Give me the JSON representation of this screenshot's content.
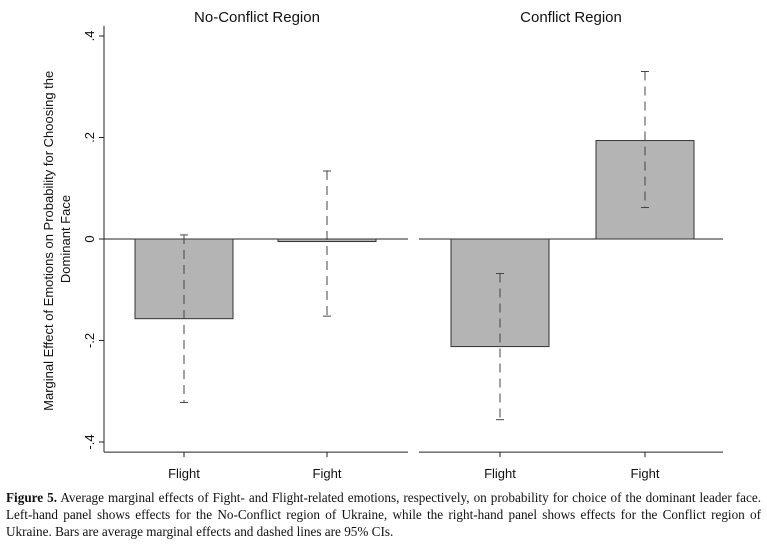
{
  "chart_data": [
    {
      "type": "bar",
      "title": "No-Conflict Region",
      "categories": [
        "Flight",
        "Fight"
      ],
      "values": [
        -0.157,
        -0.005
      ],
      "ci_low": [
        -0.322,
        -0.152
      ],
      "ci_high": [
        0.008,
        0.134
      ],
      "ylabel": "Marginal Effect of Emotions on Probability for Choosing the Dominant Face",
      "ylim": [
        -0.42,
        0.42
      ],
      "yticks": [
        -0.4,
        -0.2,
        0,
        0.2,
        0.4
      ],
      "ytick_labels": [
        "-.4",
        "-.2",
        "0",
        ".2",
        ".4"
      ]
    },
    {
      "type": "bar",
      "title": "Conflict Region",
      "categories": [
        "Flight",
        "Fight"
      ],
      "values": [
        -0.212,
        0.194
      ],
      "ci_low": [
        -0.356,
        0.062
      ],
      "ci_high": [
        -0.068,
        0.33
      ],
      "ylim": [
        -0.42,
        0.42
      ]
    }
  ],
  "ylabel_line1": "Marginal Effect of Emotions on Probability for Choosing the",
  "ylabel_line2": "Dominant Face",
  "caption": {
    "label": "Figure 5.",
    "text": " Average marginal effects of Fight- and Flight-related emotions, respectively, on probability for choice of the dominant leader face. Left-hand panel shows effects for the No-Conflict region of Ukraine, while the right-hand panel shows effects for the Conflict region of Ukraine. Bars are average marginal effects and dashed lines are 95% CIs."
  }
}
